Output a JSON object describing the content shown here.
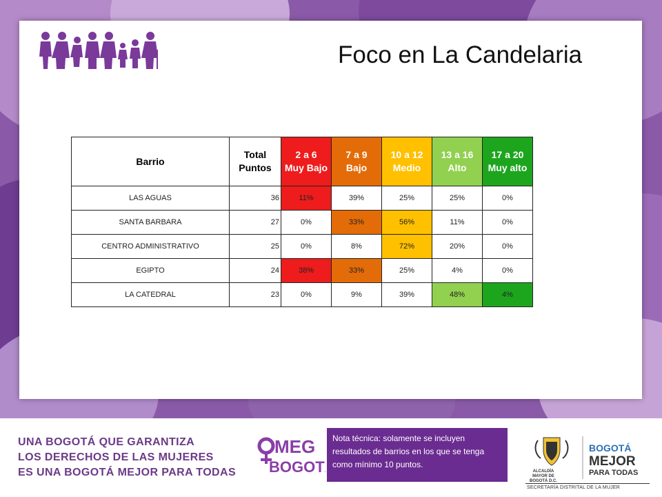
{
  "slide": {
    "title": "Foco en La Candelaria"
  },
  "table": {
    "headers": [
      {
        "label": "Barrio"
      },
      {
        "label": "Total\nPuntos"
      },
      {
        "label": "2 a 6\nMuy Bajo"
      },
      {
        "label": "7 a 9\nBajo"
      },
      {
        "label": "10 a 12\nMedio"
      },
      {
        "label": "13 a 16\nAlto"
      },
      {
        "label": "17 a 20\nMuy alto"
      }
    ],
    "rows": [
      {
        "barrio": "LAS AGUAS",
        "total": "36",
        "v": [
          "11%",
          "39%",
          "25%",
          "25%",
          "0%"
        ]
      },
      {
        "barrio": "SANTA BARBARA",
        "total": "27",
        "v": [
          "0%",
          "33%",
          "56%",
          "11%",
          "0%"
        ]
      },
      {
        "barrio": "CENTRO ADMINISTRATIVO",
        "total": "25",
        "v": [
          "0%",
          "8%",
          "72%",
          "20%",
          "0%"
        ]
      },
      {
        "barrio": "EGIPTO",
        "total": "24",
        "v": [
          "38%",
          "33%",
          "25%",
          "4%",
          "0%"
        ]
      },
      {
        "barrio": "LA CATEDRAL",
        "total": "23",
        "v": [
          "0%",
          "9%",
          "39%",
          "48%",
          "4%"
        ]
      }
    ]
  },
  "colors": {
    "muy_bajo": "#ee1c1c",
    "bajo": "#e36c09",
    "medio": "#ffc000",
    "alto": "#92d050",
    "muy_alto": "#1ea51e",
    "brand_purple": "#6b2c91"
  },
  "footer": {
    "slogan": [
      "UNA BOGOTÁ QUE GARANTIZA",
      "LOS DERECHOS DE LAS MUJERES",
      "ES UNA BOGOTÁ MEJOR PARA TODAS"
    ],
    "omeg_logo": "OMEG BOGOTÁ",
    "note": "Nota técnica: solamente se incluyen resultados de barrios en los que se tenga como mínimo 10 puntos.",
    "alcaldia": "ALCALDÍA MAYOR DE BOGOTÁ D.C.",
    "bogota_logo": "BOGOTÁ MEJOR PARA TODAS",
    "secretaria": "SECRETARÍA DISTRITAL DE LA MUJER"
  }
}
